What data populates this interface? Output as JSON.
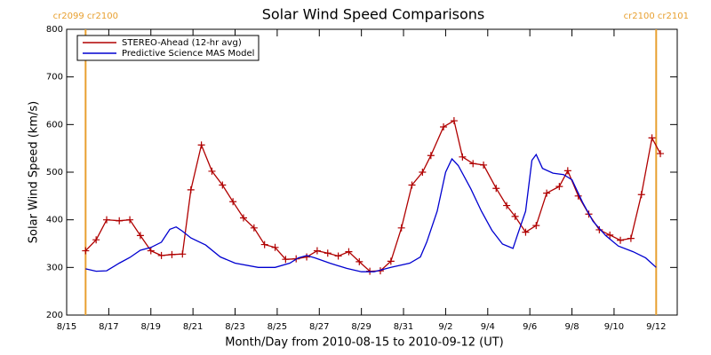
{
  "chart_data": {
    "type": "line",
    "title": "Solar Wind Speed Comparisons",
    "x_label": "Month/Day from 2010-08-15 to 2010-09-12 (UT)",
    "y_label": "Solar Wind Speed (km/s)",
    "xlim": [
      0,
      29
    ],
    "ylim": [
      200,
      800
    ],
    "yticks": [
      200,
      300,
      400,
      500,
      600,
      700,
      800
    ],
    "xticks": [
      {
        "value": 0,
        "label": "8/15"
      },
      {
        "value": 2,
        "label": "8/17"
      },
      {
        "value": 4,
        "label": "8/19"
      },
      {
        "value": 6,
        "label": "8/21"
      },
      {
        "value": 8,
        "label": "8/23"
      },
      {
        "value": 10,
        "label": "8/25"
      },
      {
        "value": 12,
        "label": "8/27"
      },
      {
        "value": 14,
        "label": "8/29"
      },
      {
        "value": 16,
        "label": "8/31"
      },
      {
        "value": 18,
        "label": "9/2"
      },
      {
        "value": 20,
        "label": "9/4"
      },
      {
        "value": 22,
        "label": "9/6"
      },
      {
        "value": 24,
        "label": "9/8"
      },
      {
        "value": 26,
        "label": "9/10"
      },
      {
        "value": 28,
        "label": "9/12"
      }
    ],
    "legend": "upper left",
    "vlines": [
      {
        "x": 0.9,
        "label": "cr2099 cr2100",
        "color": "#e8a030"
      },
      {
        "x": 28,
        "label": "cr2100 cr2101",
        "color": "#e8a030"
      }
    ],
    "series": [
      {
        "name": "STEREO-Ahead (12-hr avg)",
        "color": "#b00000",
        "markers": true,
        "x": [
          0.9,
          1.4,
          1.9,
          2.5,
          3.0,
          3.5,
          4.0,
          4.5,
          5.0,
          5.5,
          5.9,
          6.4,
          6.9,
          7.4,
          7.9,
          8.4,
          8.9,
          9.4,
          9.9,
          10.4,
          10.9,
          11.4,
          11.9,
          12.4,
          12.9,
          13.4,
          13.9,
          14.4,
          14.9,
          15.4,
          15.9,
          16.4,
          16.9,
          17.3,
          17.9,
          18.4,
          18.8,
          19.3,
          19.8,
          20.4,
          20.9,
          21.3,
          21.8,
          22.3,
          22.8,
          23.4,
          23.8,
          24.3,
          24.8,
          25.3,
          25.8,
          26.3,
          26.8,
          27.3,
          27.8,
          28.2
        ],
        "values": [
          335,
          358,
          400,
          398,
          400,
          367,
          335,
          325,
          327,
          328,
          463,
          557,
          502,
          473,
          438,
          404,
          383,
          348,
          342,
          317,
          318,
          322,
          335,
          330,
          324,
          333,
          312,
          292,
          293,
          313,
          383,
          473,
          500,
          535,
          595,
          608,
          532,
          518,
          515,
          466,
          430,
          407,
          374,
          388,
          456,
          470,
          503,
          450,
          412,
          379,
          368,
          357,
          361,
          453,
          572,
          539
        ]
      },
      {
        "name": "Predictive Science MAS Model",
        "color": "#0000d0",
        "markers": false,
        "x": [
          0.9,
          1.4,
          1.9,
          2.5,
          3.0,
          3.5,
          4.0,
          4.5,
          4.9,
          5.2,
          5.5,
          5.9,
          6.6,
          7.3,
          8.0,
          9.1,
          9.9,
          10.6,
          11.0,
          11.4,
          11.8,
          12.5,
          13.3,
          14.0,
          14.6,
          15.4,
          16.3,
          16.8,
          17.1,
          17.6,
          18.0,
          18.3,
          18.6,
          19.2,
          19.7,
          20.2,
          20.7,
          21.2,
          21.4,
          21.8,
          22.1,
          22.3,
          22.6,
          23.1,
          23.6,
          24.0,
          24.5,
          25.0,
          25.6,
          26.2,
          26.9,
          27.5,
          28.0
        ],
        "values": [
          297,
          292,
          293,
          309,
          321,
          336,
          342,
          353,
          380,
          385,
          376,
          362,
          347,
          322,
          309,
          300,
          300,
          309,
          320,
          325,
          320,
          309,
          298,
          291,
          291,
          300,
          309,
          322,
          353,
          418,
          500,
          528,
          514,
          465,
          418,
          378,
          349,
          340,
          367,
          418,
          525,
          537,
          508,
          498,
          495,
          484,
          437,
          397,
          367,
          345,
          333,
          320,
          300
        ]
      }
    ]
  }
}
